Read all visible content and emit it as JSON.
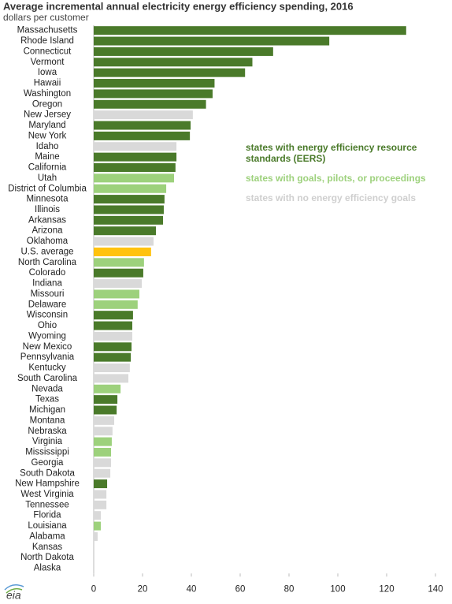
{
  "chart_data": {
    "type": "bar",
    "orientation": "horizontal",
    "title": "Average incremental annual electricity energy efficiency spending, 2016",
    "subtitle": "dollars per customer",
    "categories": [
      "Massachusetts",
      "Rhode Island",
      "Connecticut",
      "Vermont",
      "Iowa",
      "Hawaii",
      "Washington",
      "Oregon",
      "New Jersey",
      "Maryland",
      "New York",
      "Idaho",
      "Maine",
      "California",
      "Utah",
      "District of Columbia",
      "Minnesota",
      "Illinois",
      "Arkansas",
      "Arizona",
      "Oklahoma",
      "U.S. average",
      "North Carolina",
      "Colorado",
      "Indiana",
      "Missouri",
      "Delaware",
      "Wisconsin",
      "Ohio",
      "Wyoming",
      "New Mexico",
      "Pennsylvania",
      "Kentucky",
      "South Carolina",
      "Nevada",
      "Texas",
      "Michigan",
      "Montana",
      "Nebraska",
      "Virginia",
      "Mississippi",
      "Georgia",
      "South Dakota",
      "New Hampshire",
      "West Virginia",
      "Tennessee",
      "Florida",
      "Louisiana",
      "Alabama",
      "Kansas",
      "North Dakota",
      "Alaska"
    ],
    "values": [
      128,
      96.5,
      73.5,
      65,
      62,
      49.5,
      48.7,
      46,
      40.6,
      39.7,
      39.4,
      33.9,
      33.9,
      33.5,
      32.9,
      29.7,
      29,
      28.7,
      28.4,
      25.5,
      24.5,
      23.5,
      20.6,
      20.3,
      19.7,
      18.7,
      18,
      16.1,
      15.8,
      15.8,
      15.5,
      15.2,
      14.8,
      14.2,
      11,
      9.7,
      9.4,
      8.4,
      7.7,
      7.4,
      7.1,
      7.1,
      6.8,
      5.5,
      5.2,
      5.2,
      2.9,
      2.9,
      1.6,
      0,
      0,
      0
    ],
    "colors": [
      "#4a7a2a",
      "#4a7a2a",
      "#4a7a2a",
      "#4a7a2a",
      "#4a7a2a",
      "#4a7a2a",
      "#4a7a2a",
      "#4a7a2a",
      "#d9d9d9",
      "#4a7a2a",
      "#4a7a2a",
      "#d9d9d9",
      "#4a7a2a",
      "#4a7a2a",
      "#9dd17c",
      "#9dd17c",
      "#4a7a2a",
      "#4a7a2a",
      "#4a7a2a",
      "#4a7a2a",
      "#d9d9d9",
      "#ffc20e",
      "#9dd17c",
      "#4a7a2a",
      "#d9d9d9",
      "#9dd17c",
      "#9dd17c",
      "#4a7a2a",
      "#4a7a2a",
      "#d9d9d9",
      "#4a7a2a",
      "#4a7a2a",
      "#d9d9d9",
      "#d9d9d9",
      "#9dd17c",
      "#4a7a2a",
      "#4a7a2a",
      "#d9d9d9",
      "#d9d9d9",
      "#9dd17c",
      "#9dd17c",
      "#d9d9d9",
      "#d9d9d9",
      "#4a7a2a",
      "#d9d9d9",
      "#d9d9d9",
      "#d9d9d9",
      "#9dd17c",
      "#d9d9d9",
      "#d9d9d9",
      "#d9d9d9",
      "#d9d9d9"
    ],
    "legend": [
      {
        "label": [
          "states with energy efficiency resource",
          "standards (EERS)"
        ],
        "color": "#4a7a2a"
      },
      {
        "label": [
          "states with goals, pilots, or proceedings"
        ],
        "color": "#9dd17c"
      },
      {
        "label": [
          "states with no energy efficiency goals"
        ],
        "color": "#cfcfcf"
      }
    ],
    "xlim": [
      0,
      140
    ],
    "xticks": [
      0,
      20,
      40,
      60,
      80,
      100,
      120,
      140
    ],
    "logo": "eia"
  }
}
